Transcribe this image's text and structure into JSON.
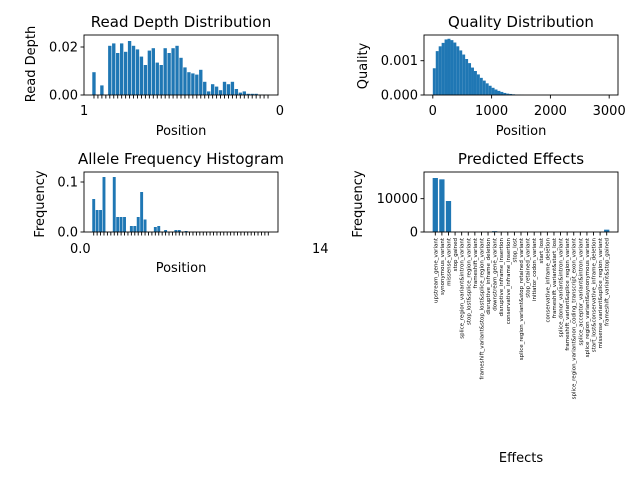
{
  "chart_data": [
    {
      "type": "bar",
      "title": "Read Depth Distribution",
      "xlabel": "Position",
      "ylabel": "Read Depth",
      "ylim": [
        0,
        0.025
      ],
      "y_ticks": [
        0.0,
        0.02
      ],
      "y_tick_labels": [
        "0.00",
        "0.02"
      ],
      "x_tick_labels_note": "dense overlapping numeric tick labels (unreadable)",
      "x_tick_labels_first": "1",
      "x_tick_labels_last": "0",
      "values": [
        0.0095,
        0.0,
        0.004,
        0.0,
        0.0205,
        0.0215,
        0.0175,
        0.0215,
        0.018,
        0.0225,
        0.0205,
        0.019,
        0.016,
        0.0125,
        0.0185,
        0.0195,
        0.0135,
        0.0125,
        0.0195,
        0.0175,
        0.0195,
        0.0205,
        0.0155,
        0.0115,
        0.0095,
        0.009,
        0.0085,
        0.0105,
        0.0055,
        0.0015,
        0.0045,
        0.0035,
        0.002,
        0.0055,
        0.0045,
        0.0055,
        0.0025,
        0.001,
        0.0015,
        0.0005,
        0.0005,
        0.0005,
        0.0002,
        0.0002,
        0.0001
      ]
    },
    {
      "type": "bar",
      "title": "Quality Distribution",
      "xlabel": "Position",
      "ylabel": "Quality",
      "xlim": [
        -150,
        3150
      ],
      "ylim": [
        0,
        0.00175
      ],
      "x_ticks": [
        0,
        1000,
        2000,
        3000
      ],
      "y_ticks": [
        0.0,
        0.001
      ],
      "y_tick_labels": [
        "0.000",
        "0.001"
      ],
      "bin_width": 50,
      "bin_starts": [
        0,
        50,
        100,
        150,
        200,
        250,
        300,
        350,
        400,
        450,
        500,
        550,
        600,
        650,
        700,
        750,
        800,
        850,
        900,
        950,
        1000,
        1050,
        1100,
        1150,
        1200,
        1250,
        1300,
        1350,
        1400,
        1450,
        1500
      ],
      "values": [
        0.00078,
        0.00128,
        0.00142,
        0.00152,
        0.00162,
        0.00164,
        0.0016,
        0.00153,
        0.00142,
        0.0013,
        0.00118,
        0.00105,
        0.00093,
        0.0008,
        0.0007,
        0.0006,
        0.0005,
        0.00042,
        0.00034,
        0.00027,
        0.00021,
        0.00016,
        0.00012,
        9e-05,
        6e-05,
        4e-05,
        3e-05,
        2e-05,
        1e-05,
        1e-05,
        5e-06
      ]
    },
    {
      "type": "bar",
      "title": "Allele Frequency Histogram",
      "xlabel": "Position",
      "ylabel": "Frequency",
      "ylim": [
        0,
        0.12
      ],
      "y_ticks": [
        0.0,
        0.1
      ],
      "y_tick_labels": [
        "0.0",
        "0.1"
      ],
      "x_tick_labels_note": "dense overlapping numeric tick labels (unreadable)",
      "x_tick_labels_first": "0.0",
      "x_tick_labels_last": "14",
      "values": [
        0.066,
        0.044,
        0.044,
        0.11,
        0.0,
        0.0,
        0.11,
        0.03,
        0.03,
        0.03,
        0.0,
        0.012,
        0.012,
        0.03,
        0.08,
        0.025,
        0.0,
        0.0,
        0.01,
        0.012,
        0.0,
        0.004,
        0.0,
        0.0,
        0.004,
        0.004,
        0.0,
        0.002,
        0.0,
        0.0,
        0.0,
        0.0,
        0.0,
        0.0,
        0.0,
        0.0,
        0.0,
        0.0,
        0.0,
        0.0,
        0.0,
        0.0,
        0.0,
        0.0,
        0.0,
        0.0,
        0.0,
        0.0,
        0.0,
        0.0,
        0.0,
        0.0
      ]
    },
    {
      "type": "bar",
      "title": "Predicted Effects",
      "xlabel": "Effects",
      "ylabel": "Frequency",
      "ylim": [
        0,
        18000
      ],
      "y_ticks": [
        0,
        10000
      ],
      "y_tick_labels": [
        "0",
        "10000"
      ],
      "categories": [
        "upstream_gene_variant",
        "synonymous_variant",
        "missense_variant",
        "stop_gained",
        "splice_region_variant&intron_variant",
        "stop_lost&splice_region_variant",
        "frameshift_variant",
        "frameshift_variant&stop_lost&splice_region_variant",
        "disruptive_inframe_deletion",
        "downstream_gene_variant",
        "disruptive_inframe_insertion",
        "conservative_inframe_insertion",
        "stop_lost",
        "splice_region_variant&stop_retained_variant",
        "stop_retained_variant",
        "initiator_codon_variant",
        "start_lost",
        "conservative_inframe_deletion",
        "frameshift_variant&start_lost",
        "splice_donor_variant&intron_variant",
        "frameshift_variant&splice_region_variant",
        "splice_region_variant&non_coding_transcript_exon_variant",
        "splice_acceptor_variant&intron_variant",
        "splice_region_variant&synonymous_variant",
        "start_lost&conservative_inframe_deletion",
        "missense_variant&splice_region_variant",
        "frameshift_variant&stop_gained"
      ],
      "values": [
        16200,
        15800,
        9300,
        80,
        60,
        30,
        40,
        20,
        30,
        250,
        20,
        20,
        20,
        10,
        10,
        10,
        20,
        20,
        10,
        10,
        10,
        10,
        10,
        10,
        10,
        10,
        700
      ]
    }
  ]
}
